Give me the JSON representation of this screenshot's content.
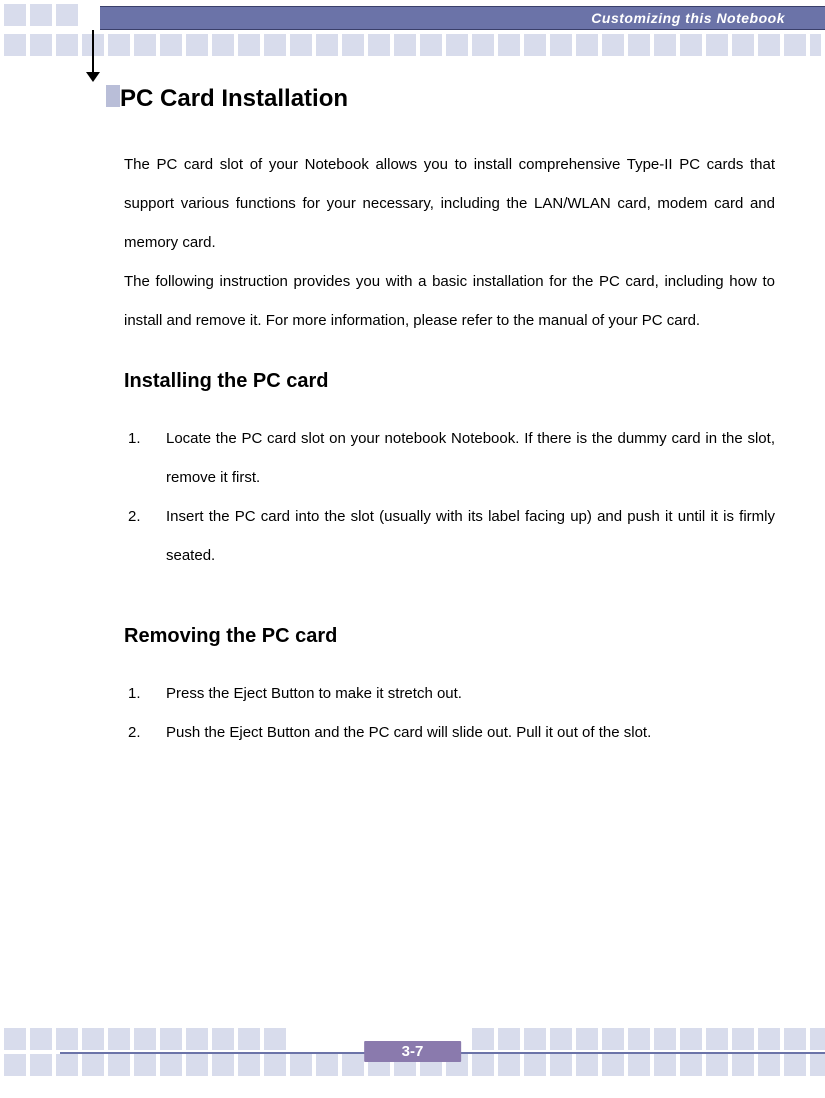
{
  "header": {
    "title": "Customizing this Notebook"
  },
  "page": {
    "title": "PC Card Installation",
    "intro": "The PC card slot of your Notebook allows you to install comprehensive Type-II PC cards that support various functions for your necessary, including the LAN/WLAN card, modem card and memory card.\nThe following instruction provides you with a basic installation for the PC card, including how to install and remove it.   For more information, please refer to the manual of your PC card."
  },
  "section_install": {
    "heading": "Installing the PC card",
    "steps": [
      "Locate the PC card slot on your notebook Notebook.  If there is the dummy card in the slot, remove it first.",
      "Insert the PC card into the slot (usually with its label facing up) and push it until it is firmly seated."
    ]
  },
  "section_remove": {
    "heading": "Removing the PC card",
    "steps": [
      "Press the Eject Button to make it stretch out.",
      "Push the Eject Button and the PC card will slide out.   Pull it out of the slot."
    ]
  },
  "footer": {
    "page_number": "3-7"
  },
  "colors": {
    "header_bg": "#6b73a8",
    "square_bg": "#d8dcec",
    "bullet_bg": "#b9bed8",
    "pagenum_bg": "#8a7aad",
    "text": "#000000",
    "header_text": "#ffffff"
  }
}
